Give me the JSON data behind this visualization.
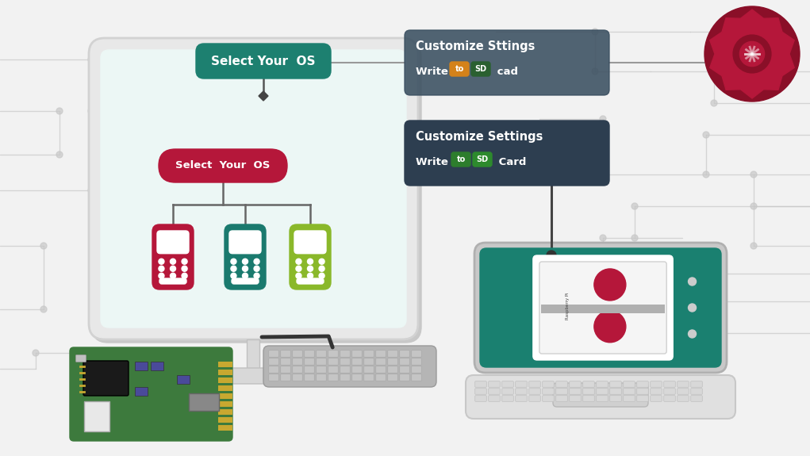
{
  "bg_color": "#f2f2f2",
  "teal_dark": "#1a7a6e",
  "teal_box": "#1d8070",
  "dark_box": "#2d3e50",
  "dark_box2": "#3a4f60",
  "crimson": "#b5173a",
  "teal_icon": "#1a7a6e",
  "lime_icon": "#8ab82a",
  "white": "#ffffff",
  "circuit_color": "#c8c8c8",
  "laptop_screen_teal": "#1a8070",
  "box1_title": "Customize Sttings",
  "box1_line2_prefix": "Write ",
  "box1_badge1": "to",
  "box1_badge2": "SD",
  "box1_line2_suffix": " cad",
  "box2_title": "Customize Settings",
  "box2_line2_prefix": "Write ",
  "box2_badge1": "to",
  "box2_badge2": "SD",
  "box2_line2_suffix": " Card",
  "select_os_label": "Select Your  OS",
  "select_os_button": "Select  Your  OS",
  "badge1_color": "#d4821a",
  "badge2_color_b1": "#2a6030",
  "badge1_color_b2": "#2d7d2d",
  "badge2_color_b2": "#2d8a2d",
  "gear_crimson": "#b5173a",
  "gear_dark": "#8a0f28"
}
